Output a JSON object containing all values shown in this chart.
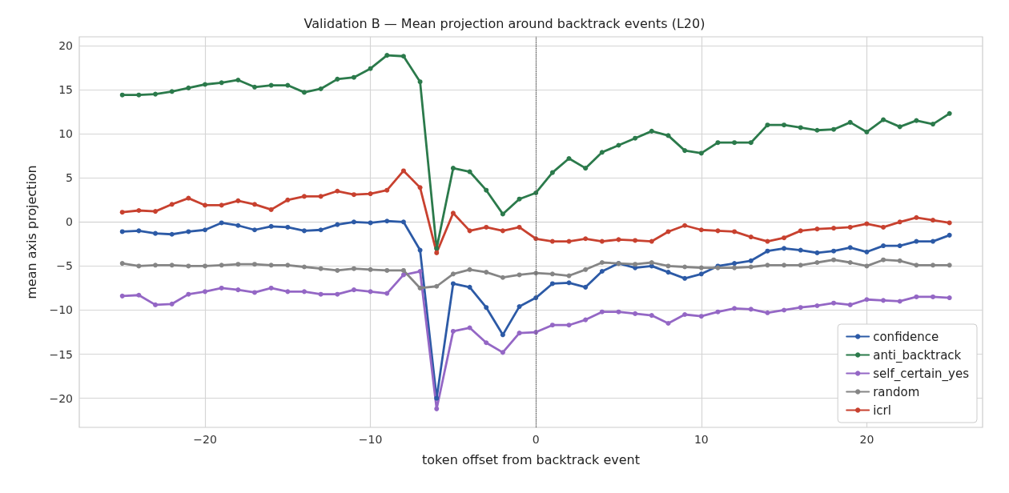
{
  "chart_data": {
    "type": "line",
    "title": "Validation B — Mean projection around backtrack events (L20)",
    "xlabel": "token offset from backtrack event",
    "ylabel": "mean axis projection",
    "x": [
      -25,
      -24,
      -23,
      -22,
      -21,
      -20,
      -19,
      -18,
      -17,
      -16,
      -15,
      -14,
      -13,
      -12,
      -11,
      -10,
      -9,
      -8,
      -7,
      -6,
      -5,
      -4,
      -3,
      -2,
      -1,
      0,
      1,
      2,
      3,
      4,
      5,
      6,
      7,
      8,
      9,
      10,
      11,
      12,
      13,
      14,
      15,
      16,
      17,
      18,
      19,
      20,
      21,
      22,
      23,
      24,
      25
    ],
    "series": [
      {
        "name": "confidence",
        "color": "#2c5aa6",
        "values": [
          -1.1,
          -1.0,
          -1.3,
          -1.4,
          -1.1,
          -0.9,
          -0.1,
          -0.4,
          -0.9,
          -0.5,
          -0.6,
          -1.0,
          -0.9,
          -0.3,
          0.0,
          -0.1,
          0.1,
          0.0,
          -3.2,
          -20.0,
          -7.0,
          -7.4,
          -9.7,
          -12.8,
          -9.6,
          -8.6,
          -7.0,
          -6.9,
          -7.4,
          -5.6,
          -4.7,
          -5.2,
          -5.0,
          -5.7,
          -6.4,
          -5.9,
          -5.0,
          -4.7,
          -4.4,
          -3.3,
          -3.0,
          -3.2,
          -3.5,
          -3.3,
          -2.9,
          -3.4,
          -2.7,
          -2.7,
          -2.2,
          -2.2,
          -1.5
        ]
      },
      {
        "name": "anti_backtrack",
        "color": "#2b7a4b",
        "values": [
          14.4,
          14.4,
          14.5,
          14.8,
          15.2,
          15.6,
          15.8,
          16.1,
          15.3,
          15.5,
          15.5,
          14.7,
          15.1,
          16.2,
          16.4,
          17.4,
          18.9,
          18.8,
          15.9,
          -3.0,
          6.1,
          5.7,
          3.6,
          0.9,
          2.6,
          3.3,
          5.6,
          7.2,
          6.1,
          7.9,
          8.7,
          9.5,
          10.3,
          9.8,
          8.1,
          7.8,
          9.0,
          9.0,
          9.0,
          11.0,
          11.0,
          10.7,
          10.4,
          10.5,
          11.3,
          10.2,
          11.6,
          10.8,
          11.5,
          11.1,
          12.3
        ]
      },
      {
        "name": "self_certain_yes",
        "color": "#9467c5",
        "values": [
          -8.4,
          -8.3,
          -9.4,
          -9.3,
          -8.2,
          -7.9,
          -7.5,
          -7.7,
          -8.0,
          -7.5,
          -7.9,
          -7.9,
          -8.2,
          -8.2,
          -7.7,
          -7.9,
          -8.1,
          -6.0,
          -5.6,
          -21.2,
          -12.4,
          -12.0,
          -13.7,
          -14.8,
          -12.6,
          -12.5,
          -11.7,
          -11.7,
          -11.1,
          -10.2,
          -10.2,
          -10.4,
          -10.6,
          -11.5,
          -10.5,
          -10.7,
          -10.2,
          -9.8,
          -9.9,
          -10.3,
          -10.0,
          -9.7,
          -9.5,
          -9.2,
          -9.4,
          -8.8,
          -8.9,
          -9.0,
          -8.5,
          -8.5,
          -8.6
        ]
      },
      {
        "name": "random",
        "color": "#858585",
        "values": [
          -4.7,
          -5.0,
          -4.9,
          -4.9,
          -5.0,
          -5.0,
          -4.9,
          -4.8,
          -4.8,
          -4.9,
          -4.9,
          -5.1,
          -5.3,
          -5.5,
          -5.3,
          -5.4,
          -5.5,
          -5.5,
          -7.5,
          -7.3,
          -5.9,
          -5.4,
          -5.7,
          -6.3,
          -6.0,
          -5.8,
          -5.9,
          -6.1,
          -5.4,
          -4.6,
          -4.7,
          -4.8,
          -4.6,
          -5.0,
          -5.1,
          -5.2,
          -5.2,
          -5.2,
          -5.1,
          -4.9,
          -4.9,
          -4.9,
          -4.6,
          -4.3,
          -4.6,
          -5.0,
          -4.3,
          -4.4,
          -4.9,
          -4.9,
          -4.9
        ]
      },
      {
        "name": "icrl",
        "color": "#c8412f",
        "values": [
          1.1,
          1.3,
          1.2,
          2.0,
          2.7,
          1.9,
          1.9,
          2.4,
          2.0,
          1.4,
          2.5,
          2.9,
          2.9,
          3.5,
          3.1,
          3.2,
          3.6,
          5.8,
          3.9,
          -3.5,
          1.0,
          -1.0,
          -0.6,
          -1.0,
          -0.6,
          -1.9,
          -2.2,
          -2.2,
          -1.9,
          -2.2,
          -2.0,
          -2.1,
          -2.2,
          -1.1,
          -0.4,
          -0.9,
          -1.0,
          -1.1,
          -1.7,
          -2.2,
          -1.8,
          -1.0,
          -0.8,
          -0.7,
          -0.6,
          -0.2,
          -0.6,
          0.0,
          0.5,
          0.2,
          -0.1
        ]
      }
    ],
    "xlim": [
      -27.6,
      27.0
    ],
    "xticks": [
      {
        "value": -20,
        "label": "−20"
      },
      {
        "value": -10,
        "label": "−10"
      },
      0,
      10,
      20
    ],
    "ylim": [
      -23.3,
      21.0
    ],
    "yticks": [
      {
        "value": -20,
        "label": "−20"
      },
      {
        "value": -15,
        "label": "−15"
      },
      {
        "value": -10,
        "label": "−10"
      },
      {
        "value": -5,
        "label": "−5"
      },
      0,
      5,
      10,
      15,
      20
    ],
    "ref_lines": [
      {
        "axis": "x",
        "value": 0,
        "color": "#555555",
        "line_style": "dotted"
      }
    ],
    "grid": true,
    "legend": "bottom right",
    "marker": "circle",
    "line_style": "solid"
  }
}
